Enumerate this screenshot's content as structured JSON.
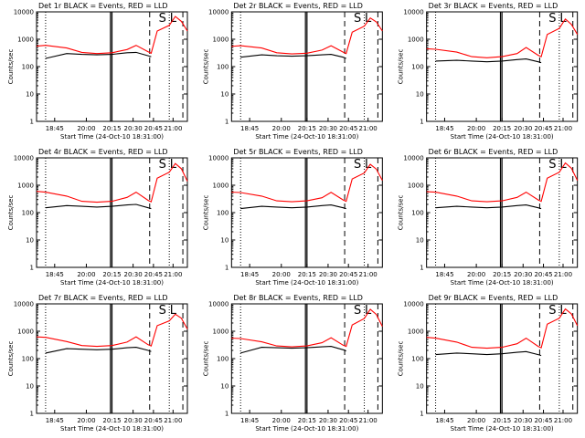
{
  "common": {
    "xlabel": "Start Time (24-Oct-10 18:31:00)",
    "ylabel": "Counts/sec",
    "x_ticks": [
      "18:45",
      "20:00",
      "20:15",
      "20:30",
      "20:45",
      "21:00"
    ],
    "y_ticks": [
      "1",
      "10",
      "100",
      "1000",
      "10000"
    ],
    "markers": [
      "S",
      "L"
    ],
    "colors": {
      "events": "#000000",
      "lld": "#ff0000",
      "axes": "#000000"
    }
  },
  "chart_data": [
    {
      "type": "line",
      "title": "Det 1r BLACK = Events, RED = LLD",
      "ylim": [
        1,
        10000
      ],
      "x": [
        0,
        0.06,
        0.2,
        0.3,
        0.4,
        0.5,
        0.6,
        0.66,
        0.74,
        0.76,
        0.8,
        0.88,
        0.92,
        0.96,
        1.0
      ],
      "series": [
        {
          "name": "LLD",
          "values": [
            560,
            600,
            480,
            330,
            300,
            320,
            420,
            600,
            350,
            310,
            2000,
            3200,
            6800,
            4500,
            2000
          ]
        },
        {
          "name": "Events",
          "values": [
            null,
            200,
            300,
            280,
            270,
            280,
            320,
            330,
            250,
            230,
            null,
            null,
            null,
            null,
            null
          ]
        }
      ]
    },
    {
      "type": "line",
      "title": "Det 2r BLACK = Events, RED = LLD",
      "ylim": [
        1,
        10000
      ],
      "x": [
        0,
        0.06,
        0.2,
        0.3,
        0.4,
        0.5,
        0.6,
        0.66,
        0.74,
        0.76,
        0.8,
        0.88,
        0.92,
        0.96,
        1.0
      ],
      "series": [
        {
          "name": "LLD",
          "values": [
            550,
            580,
            480,
            320,
            290,
            310,
            400,
            580,
            340,
            300,
            1800,
            3000,
            6000,
            4300,
            2000
          ]
        },
        {
          "name": "Events",
          "values": [
            null,
            220,
            270,
            250,
            240,
            250,
            270,
            280,
            220,
            200,
            null,
            null,
            null,
            null,
            null
          ]
        }
      ]
    },
    {
      "type": "line",
      "title": "Det 3r BLACK = Events, RED = LLD",
      "ylim": [
        1,
        10000
      ],
      "x": [
        0,
        0.06,
        0.2,
        0.3,
        0.4,
        0.5,
        0.6,
        0.66,
        0.74,
        0.76,
        0.8,
        0.88,
        0.92,
        0.96,
        1.0
      ],
      "series": [
        {
          "name": "LLD",
          "values": [
            450,
            430,
            340,
            230,
            210,
            230,
            300,
            500,
            260,
            230,
            1500,
            2500,
            5500,
            3500,
            1500
          ]
        },
        {
          "name": "Events",
          "values": [
            null,
            160,
            170,
            160,
            150,
            160,
            180,
            190,
            150,
            140,
            null,
            null,
            null,
            null,
            null
          ]
        }
      ]
    },
    {
      "type": "line",
      "title": "Det 4r BLACK = Events, RED = LLD",
      "ylim": [
        1,
        10000
      ],
      "x": [
        0,
        0.06,
        0.2,
        0.3,
        0.4,
        0.5,
        0.6,
        0.66,
        0.74,
        0.76,
        0.8,
        0.88,
        0.92,
        0.96,
        1.0
      ],
      "series": [
        {
          "name": "LLD",
          "values": [
            600,
            560,
            400,
            260,
            240,
            260,
            360,
            560,
            280,
            250,
            1800,
            3000,
            6200,
            4000,
            1400
          ]
        },
        {
          "name": "Events",
          "values": [
            null,
            150,
            180,
            170,
            160,
            170,
            190,
            200,
            150,
            140,
            null,
            null,
            null,
            null,
            null
          ]
        }
      ]
    },
    {
      "type": "line",
      "title": "Det 5r BLACK = Events, RED = LLD",
      "ylim": [
        1,
        10000
      ],
      "x": [
        0,
        0.06,
        0.2,
        0.3,
        0.4,
        0.5,
        0.6,
        0.66,
        0.74,
        0.76,
        0.8,
        0.88,
        0.92,
        0.96,
        1.0
      ],
      "series": [
        {
          "name": "LLD",
          "values": [
            560,
            540,
            400,
            270,
            250,
            270,
            350,
            550,
            290,
            260,
            1700,
            2800,
            5800,
            3900,
            1500
          ]
        },
        {
          "name": "Events",
          "values": [
            null,
            140,
            170,
            160,
            150,
            160,
            180,
            190,
            150,
            140,
            null,
            null,
            null,
            null,
            null
          ]
        }
      ]
    },
    {
      "type": "line",
      "title": "Det 6r BLACK = Events, RED = LLD",
      "ylim": [
        1,
        10000
      ],
      "x": [
        0,
        0.06,
        0.2,
        0.3,
        0.4,
        0.5,
        0.6,
        0.66,
        0.74,
        0.76,
        0.8,
        0.88,
        0.92,
        0.96,
        1.0
      ],
      "series": [
        {
          "name": "LLD",
          "values": [
            580,
            560,
            400,
            270,
            250,
            270,
            360,
            560,
            290,
            260,
            1800,
            3000,
            6500,
            4200,
            1500
          ]
        },
        {
          "name": "Events",
          "values": [
            null,
            150,
            170,
            160,
            150,
            160,
            180,
            190,
            150,
            140,
            null,
            null,
            null,
            null,
            null
          ]
        }
      ]
    },
    {
      "type": "line",
      "title": "Det 7r BLACK = Events, RED = LLD",
      "ylim": [
        1,
        10000
      ],
      "x": [
        0,
        0.06,
        0.2,
        0.3,
        0.4,
        0.5,
        0.6,
        0.66,
        0.74,
        0.76,
        0.8,
        0.88,
        0.92,
        0.96,
        1.0
      ],
      "series": [
        {
          "name": "LLD",
          "values": [
            620,
            600,
            420,
            300,
            280,
            300,
            400,
            620,
            320,
            290,
            1600,
            2400,
            4200,
            3000,
            1200
          ]
        },
        {
          "name": "Events",
          "values": [
            null,
            160,
            230,
            220,
            210,
            220,
            250,
            260,
            200,
            180,
            null,
            null,
            null,
            null,
            null
          ]
        }
      ]
    },
    {
      "type": "line",
      "title": "Det 8r BLACK = Events, RED = LLD",
      "ylim": [
        1,
        10000
      ],
      "x": [
        0,
        0.06,
        0.2,
        0.3,
        0.4,
        0.5,
        0.6,
        0.66,
        0.74,
        0.76,
        0.8,
        0.88,
        0.92,
        0.96,
        1.0
      ],
      "series": [
        {
          "name": "LLD",
          "values": [
            560,
            540,
            410,
            290,
            270,
            290,
            380,
            580,
            310,
            280,
            1700,
            2900,
            6300,
            4100,
            1500
          ]
        },
        {
          "name": "Events",
          "values": [
            null,
            160,
            260,
            250,
            240,
            250,
            270,
            280,
            210,
            190,
            null,
            null,
            null,
            null,
            null
          ]
        }
      ]
    },
    {
      "type": "line",
      "title": "Det 9r BLACK = Events, RED = LLD",
      "ylim": [
        1,
        10000
      ],
      "x": [
        0,
        0.06,
        0.2,
        0.3,
        0.4,
        0.5,
        0.6,
        0.66,
        0.74,
        0.76,
        0.8,
        0.88,
        0.92,
        0.96,
        1.0
      ],
      "series": [
        {
          "name": "LLD",
          "values": [
            600,
            560,
            400,
            260,
            240,
            260,
            350,
            560,
            280,
            250,
            1800,
            3000,
            6500,
            4300,
            1600
          ]
        },
        {
          "name": "Events",
          "values": [
            null,
            140,
            160,
            150,
            140,
            150,
            170,
            180,
            140,
            130,
            null,
            null,
            null,
            null,
            null
          ]
        }
      ]
    }
  ]
}
